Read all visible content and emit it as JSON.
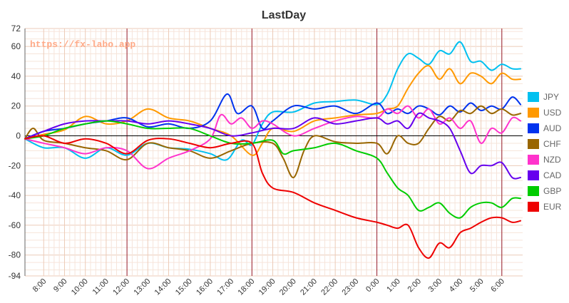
{
  "chart_data": {
    "type": "line",
    "title": "LastDay",
    "watermark": "https://fx-labo.app",
    "xlabel": "",
    "ylabel": "",
    "ylim": [
      -94,
      72
    ],
    "yticks": [
      72,
      60,
      40,
      20,
      0,
      -20,
      -40,
      -60,
      -80,
      -94
    ],
    "x_tick_labels": [
      "8:00",
      "9:00",
      "10:00",
      "11:00",
      "12:00",
      "13:00",
      "14:00",
      "15:00",
      "16:00",
      "17:00",
      "18:00",
      "19:00",
      "20:00",
      "21:00",
      "22:00",
      "23:00",
      "0:00",
      "1:00",
      "2:00",
      "3:00",
      "4:00",
      "5:00",
      "6:00"
    ],
    "x_tick_hours": [
      8,
      9,
      10,
      11,
      12,
      13,
      14,
      15,
      16,
      17,
      18,
      19,
      20,
      21,
      22,
      23,
      24,
      25,
      26,
      27,
      28,
      29,
      30
    ],
    "xlim": [
      7.1,
      31.0
    ],
    "vertical_markers_at_hours": [
      12,
      18,
      24,
      30
    ],
    "grid": true,
    "legend_position": "right",
    "series": [
      {
        "name": "JPY",
        "color": "#00c0f0",
        "x": [
          7.1,
          8,
          9,
          10,
          11,
          12,
          13,
          14,
          15,
          16,
          16.8,
          17.5,
          18,
          18.5,
          19,
          20,
          21,
          22,
          23,
          24,
          24.5,
          25,
          25.5,
          26,
          26.5,
          27,
          27.5,
          28,
          28.5,
          29,
          29.5,
          30,
          30.5,
          30.9
        ],
        "y": [
          -2,
          -8,
          -8,
          -15,
          -8,
          -13,
          -5,
          -8,
          -9,
          -12,
          -16,
          -3,
          -6,
          8,
          16,
          16,
          22,
          23,
          24,
          21,
          28,
          45,
          55,
          52,
          48,
          57,
          55,
          63,
          50,
          50,
          44,
          48,
          45,
          45
        ]
      },
      {
        "name": "USD",
        "color": "#ff9900",
        "x": [
          7.1,
          8,
          9,
          10,
          11,
          12,
          13,
          14,
          15,
          16,
          17,
          18,
          18.5,
          19,
          20,
          21,
          22,
          23,
          24,
          24.5,
          25,
          25.5,
          26,
          26.5,
          27,
          27.5,
          28,
          28.5,
          29,
          29.5,
          30,
          30.5,
          30.9
        ],
        "y": [
          -2,
          1,
          4,
          13,
          8,
          10,
          18,
          12,
          10,
          5,
          0,
          -13,
          -5,
          5,
          3,
          10,
          12,
          14,
          15,
          18,
          20,
          32,
          42,
          47,
          38,
          45,
          35,
          42,
          40,
          35,
          42,
          38,
          38
        ]
      },
      {
        "name": "AUD",
        "color": "#0033ee",
        "x": [
          7.1,
          8,
          9,
          10,
          11,
          12,
          13,
          14,
          15,
          16,
          16.8,
          17.3,
          18,
          18.5,
          19,
          20,
          21,
          22,
          23,
          24,
          24.5,
          25,
          25.5,
          26,
          26.5,
          27,
          27.5,
          28,
          28.5,
          29,
          29.5,
          30,
          30.5,
          30.9
        ],
        "y": [
          -2,
          3,
          5,
          8,
          10,
          12,
          6,
          8,
          5,
          10,
          28,
          15,
          20,
          5,
          10,
          20,
          18,
          20,
          15,
          22,
          15,
          18,
          15,
          20,
          18,
          14,
          20,
          16,
          22,
          17,
          20,
          18,
          26,
          21
        ]
      },
      {
        "name": "CHF",
        "color": "#996600",
        "x": [
          7.1,
          7.5,
          8,
          9,
          10,
          11,
          12,
          13,
          14,
          15,
          16,
          17,
          18,
          19,
          19.5,
          20,
          20.5,
          21,
          22,
          23,
          24,
          24.5,
          25,
          25.5,
          26,
          26.5,
          27,
          27.5,
          28,
          28.5,
          29,
          29.5,
          30,
          30.5,
          30.9
        ],
        "y": [
          -2,
          5,
          -3,
          -5,
          -8,
          -10,
          -16,
          -5,
          -8,
          -10,
          -15,
          -10,
          -5,
          -5,
          -15,
          -28,
          -10,
          0,
          -4,
          -5,
          -5,
          -12,
          0,
          -5,
          -5,
          5,
          13,
          10,
          17,
          15,
          20,
          15,
          18,
          14,
          15
        ]
      },
      {
        "name": "NZD",
        "color": "#ff33cc",
        "x": [
          7.1,
          8,
          9,
          10,
          11,
          12,
          13,
          14,
          15,
          16,
          16.5,
          17,
          17.5,
          18,
          18.5,
          19,
          20,
          21,
          22,
          23,
          24,
          24.5,
          25,
          25.5,
          26,
          26.5,
          27,
          27.5,
          28,
          28.5,
          29,
          29.5,
          30,
          30.5,
          30.9
        ],
        "y": [
          -2,
          -5,
          -8,
          -12,
          -8,
          -10,
          -22,
          -15,
          -10,
          -2,
          14,
          8,
          12,
          5,
          10,
          8,
          0,
          5,
          10,
          13,
          12,
          18,
          15,
          20,
          12,
          18,
          8,
          12,
          5,
          10,
          -5,
          5,
          2,
          12,
          10
        ]
      },
      {
        "name": "CAD",
        "color": "#6600ee",
        "x": [
          7.1,
          8,
          9,
          10,
          11,
          12,
          13,
          14,
          15,
          16,
          17,
          18,
          19,
          20,
          21,
          22,
          23,
          24,
          24.5,
          25,
          25.5,
          26,
          26.5,
          27,
          27.5,
          28,
          28.5,
          29,
          29.5,
          30,
          30.5,
          30.9
        ],
        "y": [
          -2,
          3,
          8,
          10,
          10,
          10,
          8,
          10,
          8,
          5,
          0,
          2,
          5,
          5,
          12,
          8,
          10,
          12,
          8,
          10,
          5,
          15,
          12,
          10,
          5,
          -10,
          -25,
          -20,
          -20,
          -18,
          -28,
          -28
        ]
      },
      {
        "name": "GBP",
        "color": "#00cc00",
        "x": [
          7.1,
          8,
          9,
          10,
          11,
          12,
          13,
          14,
          15,
          16,
          17,
          18,
          19,
          19.5,
          20,
          21,
          22,
          23,
          24,
          24.5,
          25,
          25.5,
          26,
          26.5,
          27,
          27.5,
          28,
          28.5,
          29,
          29.5,
          30,
          30.5,
          30.9
        ],
        "y": [
          -2,
          0,
          5,
          8,
          10,
          8,
          5,
          5,
          5,
          0,
          -5,
          -5,
          -3,
          -12,
          -10,
          -8,
          -5,
          -10,
          -15,
          -25,
          -35,
          -40,
          -50,
          -48,
          -45,
          -52,
          -55,
          -48,
          -45,
          -45,
          -48,
          -42,
          -42
        ]
      },
      {
        "name": "EUR",
        "color": "#ee0000",
        "x": [
          7.1,
          8,
          9,
          10,
          11,
          12,
          13,
          14,
          15,
          16,
          17,
          18,
          18.5,
          19,
          20,
          21,
          22,
          23,
          24,
          24.5,
          25,
          25.5,
          26,
          26.5,
          27,
          27.5,
          28,
          28.5,
          29,
          29.5,
          30,
          30.5,
          30.9
        ],
        "y": [
          -2,
          0,
          -5,
          -2,
          -5,
          -12,
          -3,
          -2,
          -5,
          -8,
          -5,
          -5,
          -25,
          -35,
          -38,
          -45,
          -50,
          -55,
          -58,
          -60,
          -62,
          -60,
          -75,
          -82,
          -72,
          -75,
          -65,
          -62,
          -58,
          -55,
          -55,
          -58,
          -57
        ]
      }
    ]
  }
}
